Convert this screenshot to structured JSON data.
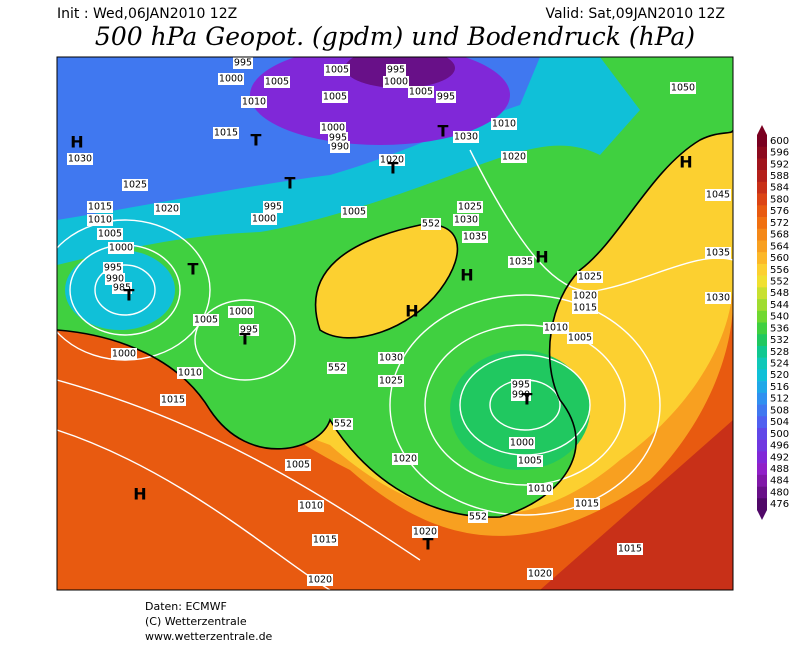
{
  "header": {
    "init": "Init : Wed,06JAN2010 12Z",
    "valid": "Valid: Sat,09JAN2010 12Z",
    "title": "500 hPa Geopot. (gpdm) und Bodendruck (hPa)"
  },
  "colorbar": {
    "levels": [
      600,
      596,
      592,
      588,
      584,
      580,
      576,
      572,
      568,
      564,
      560,
      556,
      552,
      548,
      544,
      540,
      536,
      532,
      528,
      524,
      520,
      516,
      512,
      508,
      504,
      500,
      496,
      492,
      488,
      484,
      480,
      476
    ],
    "colors": [
      "#7a0020",
      "#8c0a1e",
      "#a0141c",
      "#b4201a",
      "#c83018",
      "#dc4414",
      "#e85a10",
      "#f07010",
      "#f48818",
      "#f8a020",
      "#fcb828",
      "#fcd030",
      "#f0e030",
      "#c8e030",
      "#a0dc30",
      "#70d830",
      "#40d040",
      "#20c860",
      "#10c890",
      "#10c8b8",
      "#10c0d8",
      "#20a8e8",
      "#3090f0",
      "#4078f0",
      "#5060f0",
      "#6048e8",
      "#7038e0",
      "#8028d8",
      "#9020c8",
      "#8018a8",
      "#681088",
      "#500868"
    ]
  },
  "isobar_labels": [
    "995",
    "1000",
    "1005",
    "1005",
    "995",
    "1000",
    "1005",
    "1005",
    "995",
    "1010",
    "1015",
    "1000",
    "995",
    "990",
    "1030",
    "1010",
    "1050",
    "1030",
    "1025",
    "1020",
    "1020",
    "1020",
    "995",
    "1000",
    "1005",
    "1015",
    "1010",
    "1005",
    "1000",
    "995",
    "990",
    "985",
    "1025",
    "1030",
    "1035",
    "1035",
    "1045",
    "1035",
    "1030",
    "1025",
    "1020",
    "1015",
    "1010",
    "1005",
    "1000",
    "995",
    "1005",
    "1000",
    "1010",
    "1015",
    "1030",
    "1025",
    "995",
    "990",
    "1000",
    "1005",
    "1010",
    "1015",
    "1020",
    "1005",
    "1010",
    "1015",
    "1020",
    "1020",
    "1020",
    "1015"
  ],
  "height_labels": [
    "552",
    "552",
    "552",
    "552"
  ],
  "systems": [
    "H",
    "T",
    "T",
    "T",
    "T",
    "T",
    "T",
    "T",
    "H",
    "H",
    "H",
    "H",
    "T",
    "H",
    "T"
  ],
  "footer": [
    "Daten: ECMWF",
    "(C) Wetterzentrale",
    "www.wetterzentrale.de"
  ]
}
